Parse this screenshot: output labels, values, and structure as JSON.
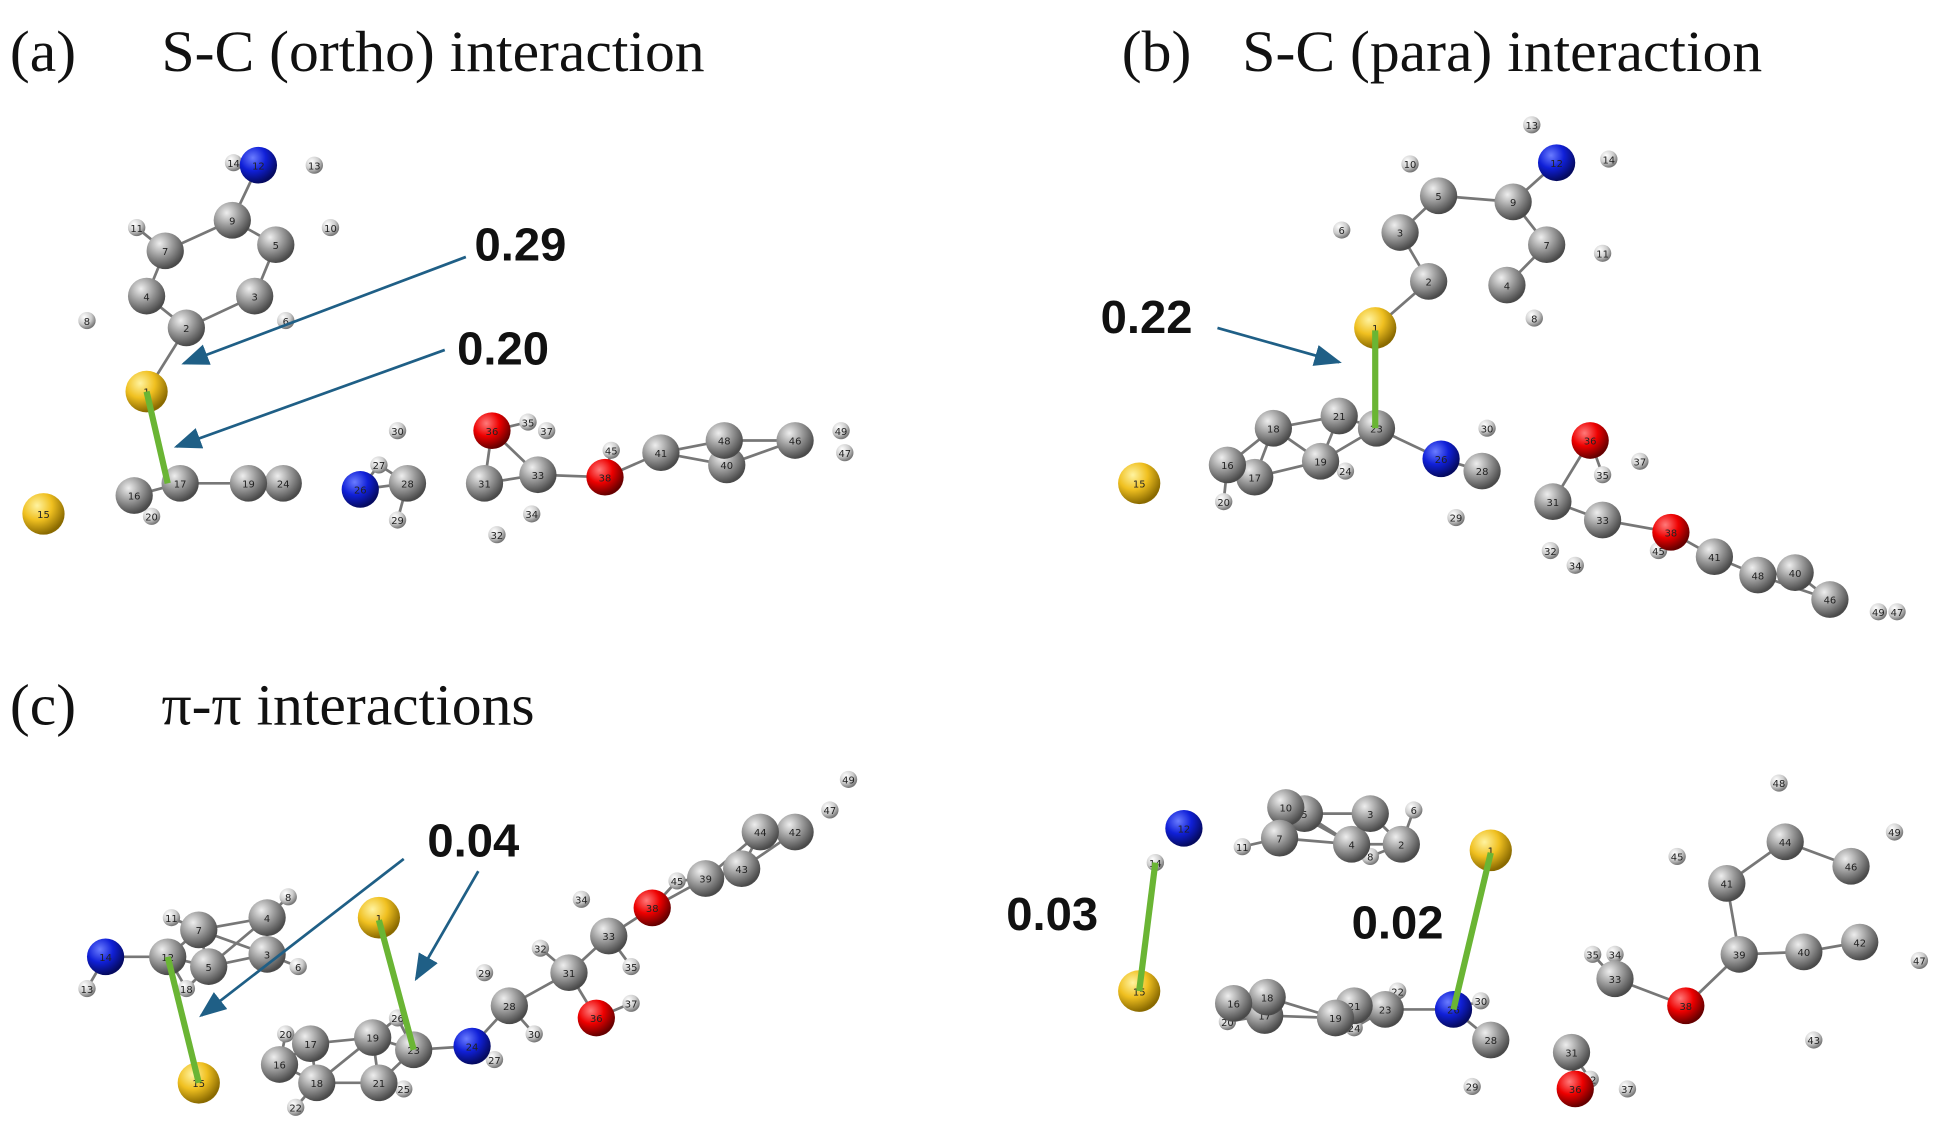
{
  "panels": [
    {
      "label": "(a)",
      "title": "S-C (ortho) interaction",
      "molecules": [
        {
          "interactions": [
            "0.29",
            "0.20"
          ],
          "atoms": [
            12,
            14,
            13,
            9,
            7,
            5,
            11,
            10,
            4,
            3,
            2,
            8,
            6,
            1,
            16,
            17,
            15,
            20,
            19,
            24,
            26,
            27,
            28,
            30,
            29,
            36,
            35,
            37,
            31,
            32,
            33,
            34,
            38,
            45,
            41,
            48,
            40,
            46,
            49,
            47
          ]
        }
      ]
    },
    {
      "label": "(b)",
      "title": "S-C (para) interaction",
      "molecules": [
        {
          "interactions": [
            "0.22"
          ],
          "atoms": [
            12,
            13,
            14,
            9,
            5,
            10,
            7,
            11,
            3,
            6,
            2,
            4,
            8,
            1,
            21,
            23,
            18,
            16,
            19,
            17,
            24,
            15,
            20,
            26,
            30,
            28,
            29,
            36,
            37,
            35,
            31,
            33,
            32,
            34,
            38,
            45,
            41,
            48,
            40,
            46,
            49,
            47
          ]
        }
      ]
    },
    {
      "label": "(c)",
      "title": "π-π interactions",
      "molecules": [
        {
          "interactions": [
            "0.04"
          ],
          "atoms": [
            14,
            13,
            11,
            7,
            12,
            5,
            18,
            3,
            6,
            4,
            8,
            1,
            15,
            16,
            20,
            17,
            18,
            22,
            19,
            21,
            25,
            23,
            26,
            24,
            27,
            29,
            28,
            30,
            32,
            31,
            34,
            33,
            35,
            36,
            37,
            38,
            45,
            39,
            43,
            44,
            42,
            47,
            49
          ]
        },
        {
          "interactions": [
            "0.03",
            "0.02"
          ],
          "atoms": [
            12,
            14,
            11,
            7,
            10,
            5,
            3,
            6,
            4,
            8,
            2,
            1,
            15,
            16,
            18,
            20,
            17,
            19,
            21,
            23,
            24,
            22,
            26,
            30,
            28,
            29,
            31,
            36,
            32,
            37,
            33,
            35,
            34,
            38,
            39,
            40,
            43,
            41,
            45,
            44,
            48,
            46,
            49,
            42,
            47
          ]
        }
      ]
    }
  ]
}
